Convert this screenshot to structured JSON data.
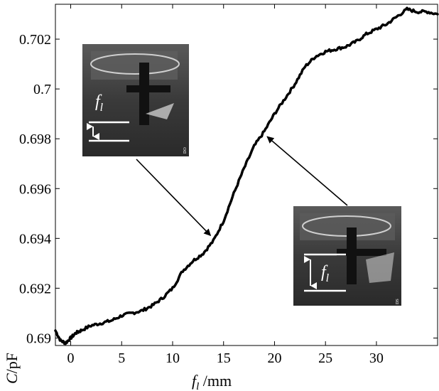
{
  "chart_data": {
    "type": "line",
    "title": "",
    "xlabel": {
      "var": "f",
      "sub": "l",
      "unit": " /mm"
    },
    "ylabel": {
      "var": "C",
      "unit": "/pF"
    },
    "xlim": [
      -1.5,
      36
    ],
    "ylim": [
      0.6897,
      0.7034
    ],
    "x_ticks": [
      0,
      5,
      10,
      15,
      20,
      25,
      30
    ],
    "x_tick_labels": [
      "0",
      "5",
      "10",
      "15",
      "20",
      "25",
      "30"
    ],
    "y_ticks": [
      0.69,
      0.692,
      0.694,
      0.696,
      0.698,
      0.7,
      0.702
    ],
    "y_tick_labels": [
      "0.69",
      "0.692",
      "0.694",
      "0.696",
      "0.698",
      "0.7",
      "0.702"
    ],
    "grid": false,
    "series": [
      {
        "x": [
          -1.5,
          -1,
          -0.5,
          0,
          0.5,
          1,
          2,
          3,
          4,
          5,
          6,
          7,
          8,
          9,
          10,
          11,
          12,
          13,
          14,
          15,
          16,
          17,
          18,
          19,
          20,
          21,
          22,
          23,
          24,
          25,
          26,
          27,
          28,
          29,
          30,
          31,
          32,
          33,
          34,
          35,
          36
        ],
        "y": [
          0.6903,
          0.6899,
          0.6898,
          0.69,
          0.6902,
          0.6903,
          0.6905,
          0.6906,
          0.6907,
          0.6909,
          0.691,
          0.6911,
          0.6913,
          0.6916,
          0.692,
          0.6927,
          0.6931,
          0.6934,
          0.6939,
          0.6947,
          0.6958,
          0.6968,
          0.6977,
          0.6983,
          0.699,
          0.6996,
          0.7002,
          0.7009,
          0.7013,
          0.7015,
          0.7016,
          0.7017,
          0.7019,
          0.7022,
          0.7024,
          0.7026,
          0.7029,
          0.7032,
          0.7031,
          0.7031,
          0.703
        ]
      }
    ],
    "insets": [
      {
        "label_var": "f",
        "label_sub": "l",
        "watermark": "DO",
        "arrow_to": [
          14,
          0.694
        ]
      },
      {
        "label_var": "f",
        "label_sub": "l",
        "watermark": "DS",
        "arrow_to": [
          19,
          0.6982
        ]
      }
    ],
    "colors": {
      "line": "#000000",
      "photo_bg": "#3a3a3a"
    }
  }
}
